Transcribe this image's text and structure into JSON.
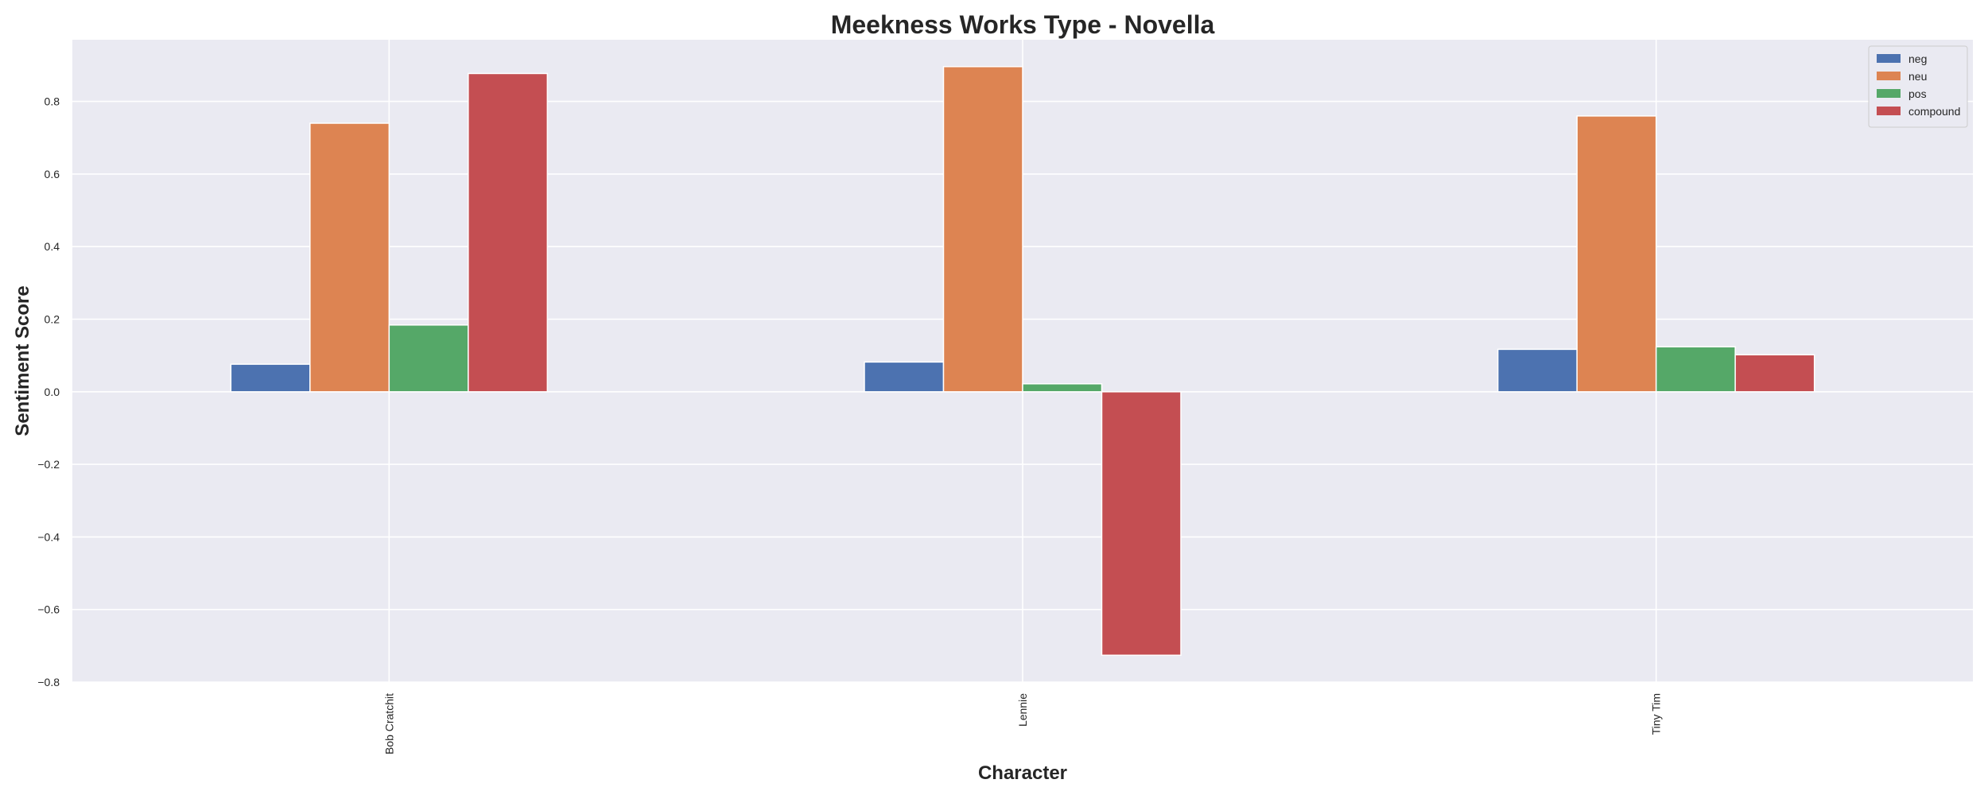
{
  "chart_data": {
    "type": "bar",
    "title": "Meekness Works Type - Novella",
    "xlabel": "Character",
    "ylabel": "Sentiment Score",
    "categories": [
      "Bob Cratchit",
      "Lennie",
      "Tiny Tim"
    ],
    "series": [
      {
        "name": "neg",
        "color": "#4c72b0",
        "values": [
          0.076,
          0.082,
          0.117
        ]
      },
      {
        "name": "neu",
        "color": "#dd8452",
        "values": [
          0.74,
          0.896,
          0.76
        ]
      },
      {
        "name": "pos",
        "color": "#55a868",
        "values": [
          0.184,
          0.022,
          0.124
        ]
      },
      {
        "name": "compound",
        "color": "#c44e52",
        "values": [
          0.877,
          -0.726,
          0.102
        ]
      }
    ],
    "ylim": [
      -0.8,
      0.97
    ],
    "yticks": [
      -0.8,
      -0.6,
      -0.4,
      -0.2,
      0.0,
      0.2,
      0.4,
      0.6,
      0.8
    ],
    "ytick_labels": [
      "−0.8",
      "−0.6",
      "−0.4",
      "−0.2",
      "0.0",
      "0.2",
      "0.4",
      "0.6",
      "0.8"
    ],
    "grid": true,
    "legend_position": "top-right",
    "background": "#eaeaf2",
    "grid_color": "#ffffff"
  }
}
